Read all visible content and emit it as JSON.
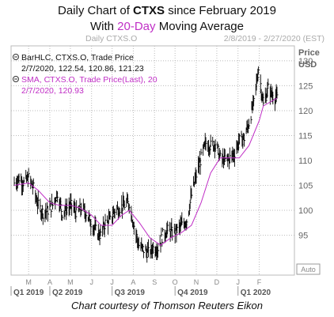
{
  "header": {
    "title_prefix": "Daily Chart of ",
    "ticker": "CTXS",
    "title_suffix": " since February 2019",
    "subtitle_prefix": "With ",
    "subtitle_accent": "20-Day",
    "subtitle_suffix": " Moving Average"
  },
  "chart_header": {
    "left": "Daily CTXS.O",
    "right": "2/8/2019 - 2/27/2020 (EST)"
  },
  "legend": {
    "bar_label": "BarHLC, CTXS.O, Trade Price",
    "bar_values": "2/7/2020, 122.54, 120.86, 121.23",
    "sma_label": "SMA, CTXS.O, Trade Price(Last),  20",
    "sma_values": "2/7/2020, 120.93"
  },
  "axis": {
    "price_label": "Price",
    "currency_label": "USD",
    "auto_label": "Auto"
  },
  "caption": "Chart courtesy of Thomson Reuters Eikon",
  "colors": {
    "bars": "#000000",
    "sma": "#c02fc6",
    "grid": "#bbbbbb",
    "accent": "#c02fc6"
  },
  "chart_data": {
    "type": "line",
    "title": "Daily Chart of CTXS since February 2019",
    "subtitle": "With 20-Day Moving Average",
    "ylabel": "Price USD",
    "ylim": [
      87,
      133
    ],
    "yticks": [
      95,
      100,
      105,
      110,
      115,
      120,
      125,
      130
    ],
    "months": [
      "M",
      "A",
      "M",
      "J",
      "J",
      "A",
      "S",
      "O",
      "N",
      "D",
      "J",
      "F"
    ],
    "quarters": [
      "Q1 2019",
      "Q2 2019",
      "Q3 2019",
      "Q4 2019",
      "Q1 2020"
    ],
    "x_range": [
      "2019-02-08",
      "2020-02-27"
    ],
    "series": [
      {
        "name": "BarHLC, CTXS.O, Trade Price",
        "style": "hlc-bars",
        "points": [
          [
            "2019-02-08",
            105.5
          ],
          [
            "2019-02-15",
            106.5
          ],
          [
            "2019-02-22",
            105.5
          ],
          [
            "2019-03-01",
            106.5
          ],
          [
            "2019-03-08",
            104.5
          ],
          [
            "2019-03-15",
            101.0
          ],
          [
            "2019-03-22",
            99.5
          ],
          [
            "2019-03-29",
            100.0
          ],
          [
            "2019-04-05",
            101.0
          ],
          [
            "2019-04-12",
            103.5
          ],
          [
            "2019-04-19",
            99.5
          ],
          [
            "2019-04-26",
            100.5
          ],
          [
            "2019-05-03",
            101.0
          ],
          [
            "2019-05-10",
            99.5
          ],
          [
            "2019-05-17",
            100.5
          ],
          [
            "2019-05-24",
            99.5
          ],
          [
            "2019-05-31",
            97.5
          ],
          [
            "2019-06-07",
            96.0
          ],
          [
            "2019-06-14",
            95.0
          ],
          [
            "2019-06-21",
            97.5
          ],
          [
            "2019-06-28",
            98.0
          ],
          [
            "2019-07-05",
            100.0
          ],
          [
            "2019-07-12",
            100.5
          ],
          [
            "2019-07-19",
            101.0
          ],
          [
            "2019-07-26",
            101.5
          ],
          [
            "2019-08-02",
            97.0
          ],
          [
            "2019-08-09",
            93.0
          ],
          [
            "2019-08-16",
            92.0
          ],
          [
            "2019-08-23",
            91.5
          ],
          [
            "2019-08-30",
            92.5
          ],
          [
            "2019-09-06",
            92.5
          ],
          [
            "2019-09-13",
            95.0
          ],
          [
            "2019-09-20",
            96.0
          ],
          [
            "2019-09-27",
            95.5
          ],
          [
            "2019-10-04",
            96.0
          ],
          [
            "2019-10-11",
            97.0
          ],
          [
            "2019-10-18",
            98.0
          ],
          [
            "2019-10-25",
            103.0
          ],
          [
            "2019-11-01",
            107.0
          ],
          [
            "2019-11-08",
            110.5
          ],
          [
            "2019-11-15",
            113.5
          ],
          [
            "2019-11-22",
            113.0
          ],
          [
            "2019-11-29",
            113.5
          ],
          [
            "2019-12-06",
            110.5
          ],
          [
            "2019-12-13",
            110.0
          ],
          [
            "2019-12-20",
            110.5
          ],
          [
            "2019-12-27",
            111.5
          ],
          [
            "2020-01-03",
            114.0
          ],
          [
            "2020-01-10",
            114.5
          ],
          [
            "2020-01-17",
            117.5
          ],
          [
            "2020-01-24",
            121.5
          ],
          [
            "2020-01-31",
            128.5
          ],
          [
            "2020-02-07",
            121.23
          ],
          [
            "2020-02-14",
            124.5
          ],
          [
            "2020-02-21",
            123.0
          ],
          [
            "2020-02-27",
            122.5
          ]
        ]
      },
      {
        "name": "SMA, CTXS.O, Trade Price(Last),  20",
        "style": "line",
        "points": [
          [
            "2019-02-08",
            105.0
          ],
          [
            "2019-03-01",
            105.5
          ],
          [
            "2019-03-15",
            104.0
          ],
          [
            "2019-04-01",
            101.5
          ],
          [
            "2019-04-15",
            101.0
          ],
          [
            "2019-05-01",
            101.0
          ],
          [
            "2019-05-15",
            100.5
          ],
          [
            "2019-06-01",
            99.0
          ],
          [
            "2019-06-15",
            97.0
          ],
          [
            "2019-07-01",
            97.0
          ],
          [
            "2019-07-15",
            99.0
          ],
          [
            "2019-07-26",
            100.0
          ],
          [
            "2019-08-10",
            97.5
          ],
          [
            "2019-08-25",
            94.5
          ],
          [
            "2019-09-10",
            93.0
          ],
          [
            "2019-09-25",
            94.5
          ],
          [
            "2019-10-10",
            95.5
          ],
          [
            "2019-10-25",
            97.0
          ],
          [
            "2019-11-08",
            101.5
          ],
          [
            "2019-11-22",
            107.5
          ],
          [
            "2019-12-06",
            110.5
          ],
          [
            "2019-12-20",
            110.5
          ],
          [
            "2020-01-03",
            110.5
          ],
          [
            "2020-01-17",
            113.0
          ],
          [
            "2020-02-01",
            118.0
          ],
          [
            "2020-02-07",
            120.93
          ],
          [
            "2020-02-14",
            121.5
          ],
          [
            "2020-02-27",
            122.5
          ]
        ]
      }
    ]
  }
}
